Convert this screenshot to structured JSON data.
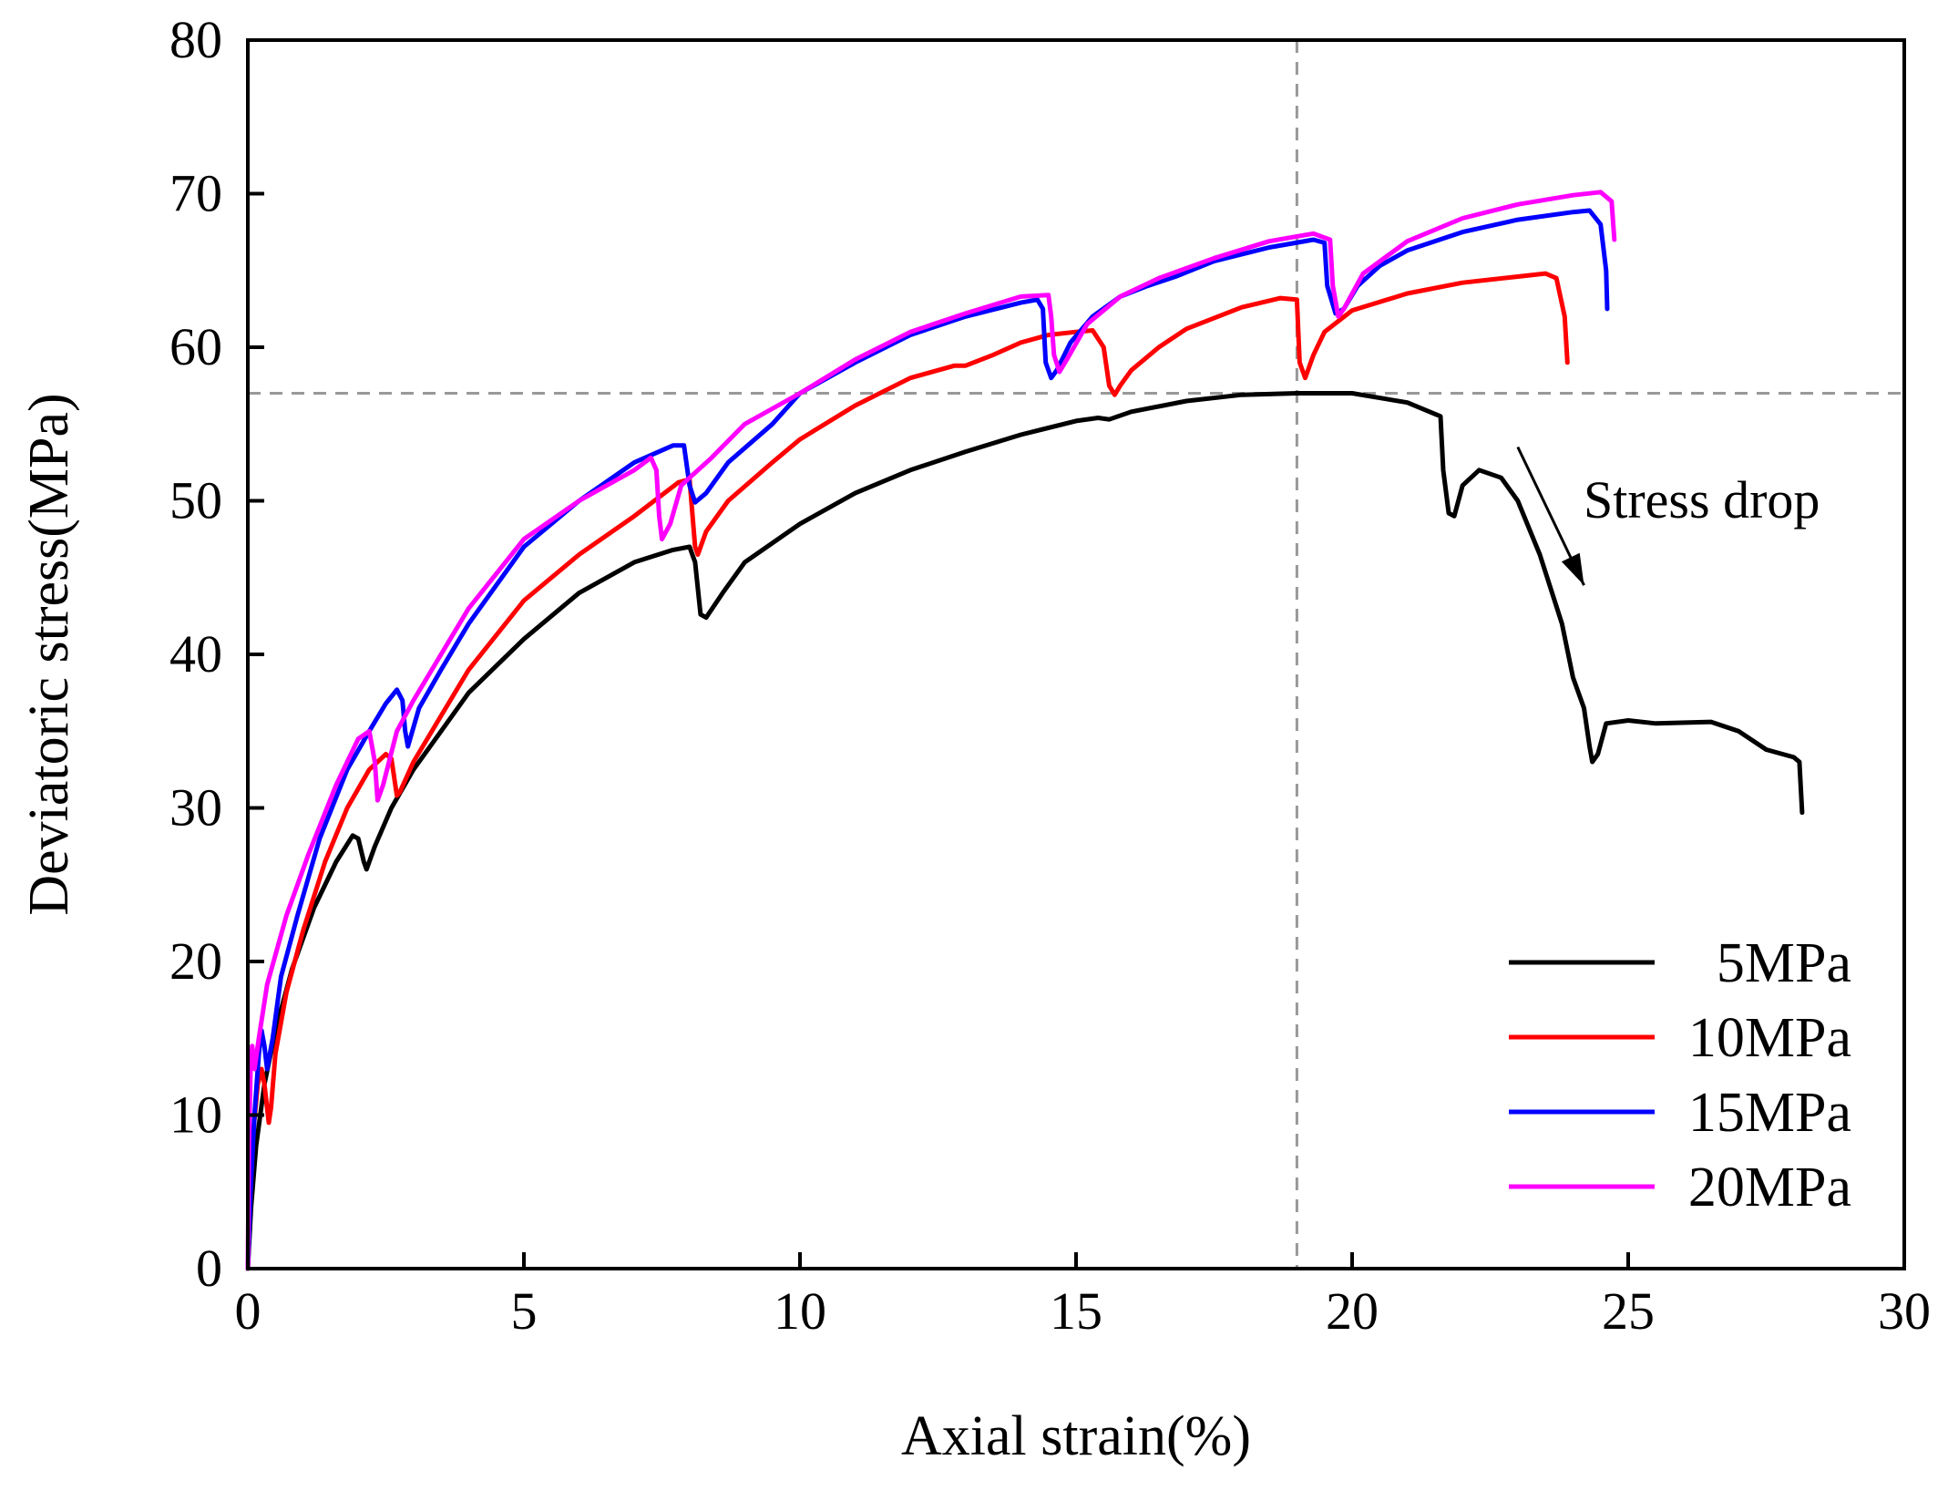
{
  "chart_data": {
    "type": "line",
    "title": "",
    "xlabel": "Axial strain(%)",
    "ylabel": "Deviatoric stress(MPa)",
    "xlim": [
      0,
      30
    ],
    "ylim": [
      0,
      80
    ],
    "x_ticks": [
      0,
      5,
      10,
      15,
      20,
      25,
      30
    ],
    "y_ticks": [
      0,
      10,
      20,
      30,
      40,
      50,
      60,
      70,
      80
    ],
    "x_tick_labels": [
      "0",
      "5",
      "10",
      "15",
      "20",
      "25",
      "30"
    ],
    "y_tick_labels": [
      "0",
      "10",
      "20",
      "30",
      "40",
      "50",
      "60",
      "70",
      "80"
    ],
    "grid": false,
    "legend_position": "bottom-right",
    "reference_lines": {
      "vertical_x": 19.0,
      "horizontal_y": 57.0,
      "color": "#999999"
    },
    "annotation": {
      "text": "Stress drop",
      "from": [
        23.0,
        53.5
      ],
      "to": [
        24.2,
        44.5
      ]
    },
    "series": [
      {
        "name": "5MPa",
        "color": "#000000",
        "points": [
          [
            0,
            0
          ],
          [
            0.06,
            4
          ],
          [
            0.15,
            8
          ],
          [
            0.3,
            12
          ],
          [
            0.5,
            15.5
          ],
          [
            0.8,
            19.5
          ],
          [
            1.2,
            23.5
          ],
          [
            1.6,
            26.5
          ],
          [
            1.9,
            28.2
          ],
          [
            2.0,
            28.0
          ],
          [
            2.1,
            26.5
          ],
          [
            2.15,
            26.0
          ],
          [
            2.3,
            27.5
          ],
          [
            2.6,
            30
          ],
          [
            3.0,
            32.5
          ],
          [
            3.5,
            35
          ],
          [
            4.0,
            37.5
          ],
          [
            5,
            41
          ],
          [
            6,
            44
          ],
          [
            7,
            46
          ],
          [
            7.7,
            46.8
          ],
          [
            8.0,
            47.0
          ],
          [
            8.1,
            46
          ],
          [
            8.2,
            42.6
          ],
          [
            8.3,
            42.4
          ],
          [
            8.6,
            44
          ],
          [
            9.0,
            46
          ],
          [
            10,
            48.5
          ],
          [
            11,
            50.5
          ],
          [
            12,
            52
          ],
          [
            13,
            53.2
          ],
          [
            14,
            54.3
          ],
          [
            15,
            55.2
          ],
          [
            15.4,
            55.4
          ],
          [
            15.6,
            55.3
          ],
          [
            16,
            55.8
          ],
          [
            17,
            56.5
          ],
          [
            18,
            56.9
          ],
          [
            19,
            57.0
          ],
          [
            20,
            57.0
          ],
          [
            21,
            56.4
          ],
          [
            21.6,
            55.5
          ],
          [
            21.65,
            52
          ],
          [
            21.75,
            49.2
          ],
          [
            21.85,
            49.0
          ],
          [
            22.0,
            51
          ],
          [
            22.3,
            52
          ],
          [
            22.7,
            51.5
          ],
          [
            23.0,
            50
          ],
          [
            23.4,
            46.5
          ],
          [
            23.8,
            42
          ],
          [
            24.0,
            38.5
          ],
          [
            24.2,
            36.5
          ],
          [
            24.3,
            34
          ],
          [
            24.35,
            33.0
          ],
          [
            24.45,
            33.5
          ],
          [
            24.6,
            35.5
          ],
          [
            25.0,
            35.7
          ],
          [
            25.5,
            35.5
          ],
          [
            26.5,
            35.6
          ],
          [
            27.0,
            35
          ],
          [
            27.5,
            33.8
          ],
          [
            28.0,
            33.3
          ],
          [
            28.1,
            33.0
          ],
          [
            28.15,
            29.7
          ]
        ]
      },
      {
        "name": "10MPa",
        "color": "#ff0000",
        "points": [
          [
            0,
            0
          ],
          [
            0.05,
            5
          ],
          [
            0.1,
            9
          ],
          [
            0.18,
            12
          ],
          [
            0.25,
            13
          ],
          [
            0.3,
            12
          ],
          [
            0.38,
            9.5
          ],
          [
            0.42,
            10.5
          ],
          [
            0.5,
            14
          ],
          [
            0.7,
            18
          ],
          [
            1.0,
            22
          ],
          [
            1.4,
            26.5
          ],
          [
            1.8,
            30
          ],
          [
            2.2,
            32.5
          ],
          [
            2.5,
            33.5
          ],
          [
            2.6,
            33.2
          ],
          [
            2.7,
            30.8
          ],
          [
            2.75,
            31
          ],
          [
            3.0,
            33
          ],
          [
            3.5,
            36
          ],
          [
            4.0,
            39
          ],
          [
            5,
            43.5
          ],
          [
            6,
            46.5
          ],
          [
            7,
            49
          ],
          [
            7.8,
            51.2
          ],
          [
            8.0,
            51.4
          ],
          [
            8.1,
            47
          ],
          [
            8.15,
            46.5
          ],
          [
            8.3,
            48
          ],
          [
            8.7,
            50
          ],
          [
            9.5,
            52.5
          ],
          [
            10,
            54
          ],
          [
            11,
            56.2
          ],
          [
            12,
            58
          ],
          [
            12.8,
            58.8
          ],
          [
            13.0,
            58.8
          ],
          [
            13.5,
            59.5
          ],
          [
            14,
            60.3
          ],
          [
            14.5,
            60.8
          ],
          [
            15.0,
            61.0
          ],
          [
            15.3,
            61.1
          ],
          [
            15.5,
            60
          ],
          [
            15.6,
            57.5
          ],
          [
            15.7,
            56.9
          ],
          [
            15.8,
            57.5
          ],
          [
            16.0,
            58.5
          ],
          [
            16.5,
            60
          ],
          [
            17,
            61.2
          ],
          [
            18,
            62.6
          ],
          [
            18.7,
            63.2
          ],
          [
            19.0,
            63.1
          ],
          [
            19.05,
            59
          ],
          [
            19.15,
            58.0
          ],
          [
            19.3,
            59.5
          ],
          [
            19.5,
            61
          ],
          [
            20,
            62.4
          ],
          [
            21,
            63.5
          ],
          [
            22,
            64.2
          ],
          [
            23,
            64.6
          ],
          [
            23.5,
            64.8
          ],
          [
            23.7,
            64.5
          ],
          [
            23.85,
            62
          ],
          [
            23.9,
            59.0
          ]
        ]
      },
      {
        "name": "15MPa",
        "color": "#0000ff",
        "points": [
          [
            0,
            0
          ],
          [
            0.05,
            5
          ],
          [
            0.12,
            10
          ],
          [
            0.2,
            14
          ],
          [
            0.25,
            15.5
          ],
          [
            0.3,
            14.5
          ],
          [
            0.35,
            13
          ],
          [
            0.45,
            15
          ],
          [
            0.6,
            19
          ],
          [
            0.9,
            23
          ],
          [
            1.3,
            28
          ],
          [
            1.8,
            32.5
          ],
          [
            2.2,
            35
          ],
          [
            2.5,
            36.8
          ],
          [
            2.7,
            37.7
          ],
          [
            2.8,
            37
          ],
          [
            2.85,
            35
          ],
          [
            2.9,
            34
          ],
          [
            3.1,
            36.5
          ],
          [
            3.5,
            39
          ],
          [
            4,
            42
          ],
          [
            5,
            47
          ],
          [
            6,
            50
          ],
          [
            7,
            52.5
          ],
          [
            7.7,
            53.6
          ],
          [
            7.9,
            53.6
          ],
          [
            8.0,
            51
          ],
          [
            8.1,
            49.9
          ],
          [
            8.3,
            50.5
          ],
          [
            8.7,
            52.5
          ],
          [
            9.5,
            55
          ],
          [
            10,
            57
          ],
          [
            11,
            59
          ],
          [
            12,
            60.8
          ],
          [
            13,
            62
          ],
          [
            14,
            62.9
          ],
          [
            14.3,
            63.1
          ],
          [
            14.4,
            62.5
          ],
          [
            14.45,
            59
          ],
          [
            14.55,
            58.0
          ],
          [
            14.65,
            58.5
          ],
          [
            14.9,
            60.3
          ],
          [
            15.3,
            62
          ],
          [
            15.8,
            63.3
          ],
          [
            16.3,
            64.0
          ],
          [
            16.8,
            64.6
          ],
          [
            17.5,
            65.6
          ],
          [
            18.5,
            66.5
          ],
          [
            19.3,
            67.0
          ],
          [
            19.5,
            66.8
          ],
          [
            19.55,
            64
          ],
          [
            19.7,
            62.2
          ],
          [
            19.85,
            62.5
          ],
          [
            20.1,
            64
          ],
          [
            20.5,
            65.3
          ],
          [
            21,
            66.3
          ],
          [
            22,
            67.5
          ],
          [
            23,
            68.3
          ],
          [
            24,
            68.8
          ],
          [
            24.3,
            68.9
          ],
          [
            24.5,
            68
          ],
          [
            24.6,
            65
          ],
          [
            24.62,
            62.5
          ]
        ]
      },
      {
        "name": "20MPa",
        "color": "#ff00ff",
        "points": [
          [
            0,
            0
          ],
          [
            0.02,
            8
          ],
          [
            0.05,
            13
          ],
          [
            0.08,
            14.5
          ],
          [
            0.12,
            13
          ],
          [
            0.2,
            15
          ],
          [
            0.35,
            18.5
          ],
          [
            0.7,
            23
          ],
          [
            1.1,
            27
          ],
          [
            1.6,
            31.5
          ],
          [
            2.0,
            34.5
          ],
          [
            2.2,
            35
          ],
          [
            2.3,
            33
          ],
          [
            2.35,
            30.5
          ],
          [
            2.45,
            31.5
          ],
          [
            2.7,
            35
          ],
          [
            3.0,
            37
          ],
          [
            3.5,
            40
          ],
          [
            4,
            43
          ],
          [
            5,
            47.5
          ],
          [
            6,
            50
          ],
          [
            7,
            52
          ],
          [
            7.3,
            52.8
          ],
          [
            7.4,
            52
          ],
          [
            7.45,
            49
          ],
          [
            7.5,
            47.5
          ],
          [
            7.65,
            48.5
          ],
          [
            7.85,
            51
          ],
          [
            8.0,
            51.5
          ],
          [
            8.4,
            52.8
          ],
          [
            9,
            55
          ],
          [
            10,
            57
          ],
          [
            11,
            59.2
          ],
          [
            12,
            61
          ],
          [
            13,
            62.2
          ],
          [
            14,
            63.3
          ],
          [
            14.5,
            63.4
          ],
          [
            14.55,
            62
          ],
          [
            14.6,
            59.5
          ],
          [
            14.7,
            58.4
          ],
          [
            14.85,
            59.3
          ],
          [
            15.2,
            61.5
          ],
          [
            15.8,
            63.3
          ],
          [
            16.5,
            64.5
          ],
          [
            17.5,
            65.8
          ],
          [
            18.5,
            66.9
          ],
          [
            19.3,
            67.4
          ],
          [
            19.6,
            67.0
          ],
          [
            19.65,
            64
          ],
          [
            19.75,
            62.0
          ],
          [
            19.85,
            62.5
          ],
          [
            20.2,
            64.8
          ],
          [
            21,
            66.9
          ],
          [
            22,
            68.4
          ],
          [
            23,
            69.3
          ],
          [
            24,
            69.9
          ],
          [
            24.5,
            70.1
          ],
          [
            24.7,
            69.5
          ],
          [
            24.75,
            67
          ]
        ]
      }
    ]
  }
}
